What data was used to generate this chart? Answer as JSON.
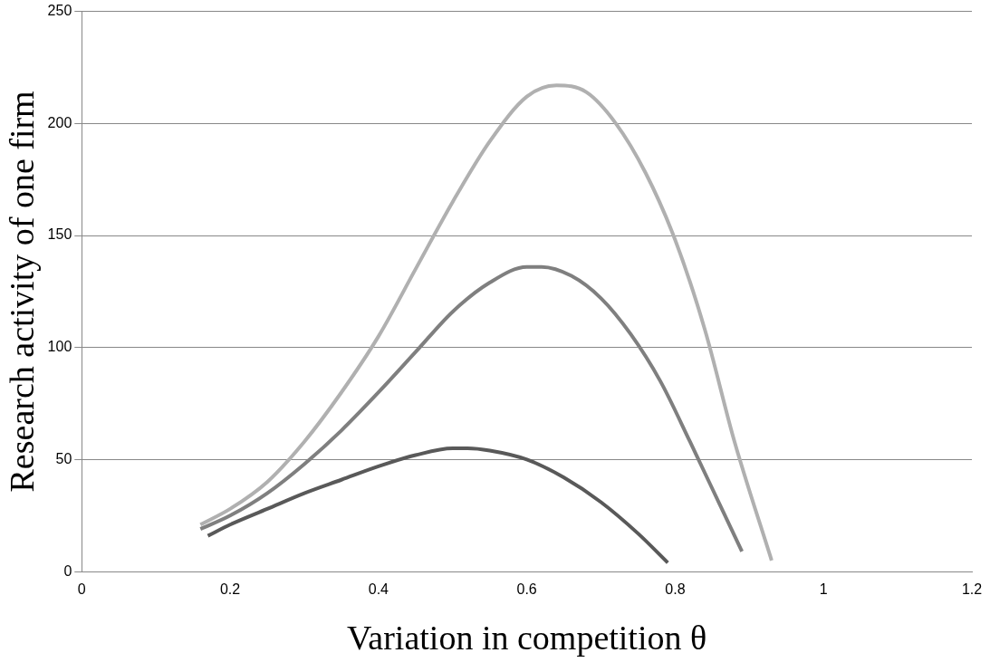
{
  "chart_data": {
    "type": "line",
    "xlabel": "Variation in competition θ",
    "ylabel": "Research activity of one firm",
    "xlim": [
      0,
      1.2
    ],
    "xticks": [
      0,
      0.2,
      0.4,
      0.6,
      0.8,
      1,
      1.2
    ],
    "ylim": [
      0,
      250
    ],
    "yticks": [
      0,
      50,
      100,
      150,
      200,
      250
    ],
    "grid": "y",
    "legend": false,
    "marker": "none",
    "line_style": "solid",
    "series": [
      {
        "color": "#b0b0b0",
        "x": [
          0.16,
          0.2,
          0.25,
          0.3,
          0.35,
          0.4,
          0.45,
          0.5,
          0.55,
          0.6,
          0.64,
          0.68,
          0.72,
          0.76,
          0.8,
          0.84,
          0.88,
          0.93
        ],
        "values": [
          21,
          28,
          40,
          58,
          80,
          105,
          135,
          165,
          192,
          212,
          217,
          214,
          200,
          178,
          148,
          108,
          58,
          5
        ]
      },
      {
        "color": "#7f7f7f",
        "x": [
          0.16,
          0.2,
          0.25,
          0.3,
          0.35,
          0.4,
          0.45,
          0.5,
          0.55,
          0.6,
          0.62,
          0.66,
          0.7,
          0.74,
          0.78,
          0.82,
          0.86,
          0.89
        ],
        "values": [
          19,
          25,
          35,
          48,
          63,
          80,
          98,
          116,
          129,
          136,
          136,
          132,
          122,
          106,
          85,
          58,
          30,
          9
        ]
      },
      {
        "color": "#595959",
        "x": [
          0.17,
          0.2,
          0.25,
          0.3,
          0.35,
          0.4,
          0.45,
          0.5,
          0.52,
          0.55,
          0.6,
          0.65,
          0.7,
          0.75,
          0.79
        ],
        "values": [
          16,
          21,
          28,
          35,
          41,
          47,
          52,
          55,
          55,
          54,
          50,
          42,
          31,
          17,
          4
        ]
      }
    ]
  }
}
